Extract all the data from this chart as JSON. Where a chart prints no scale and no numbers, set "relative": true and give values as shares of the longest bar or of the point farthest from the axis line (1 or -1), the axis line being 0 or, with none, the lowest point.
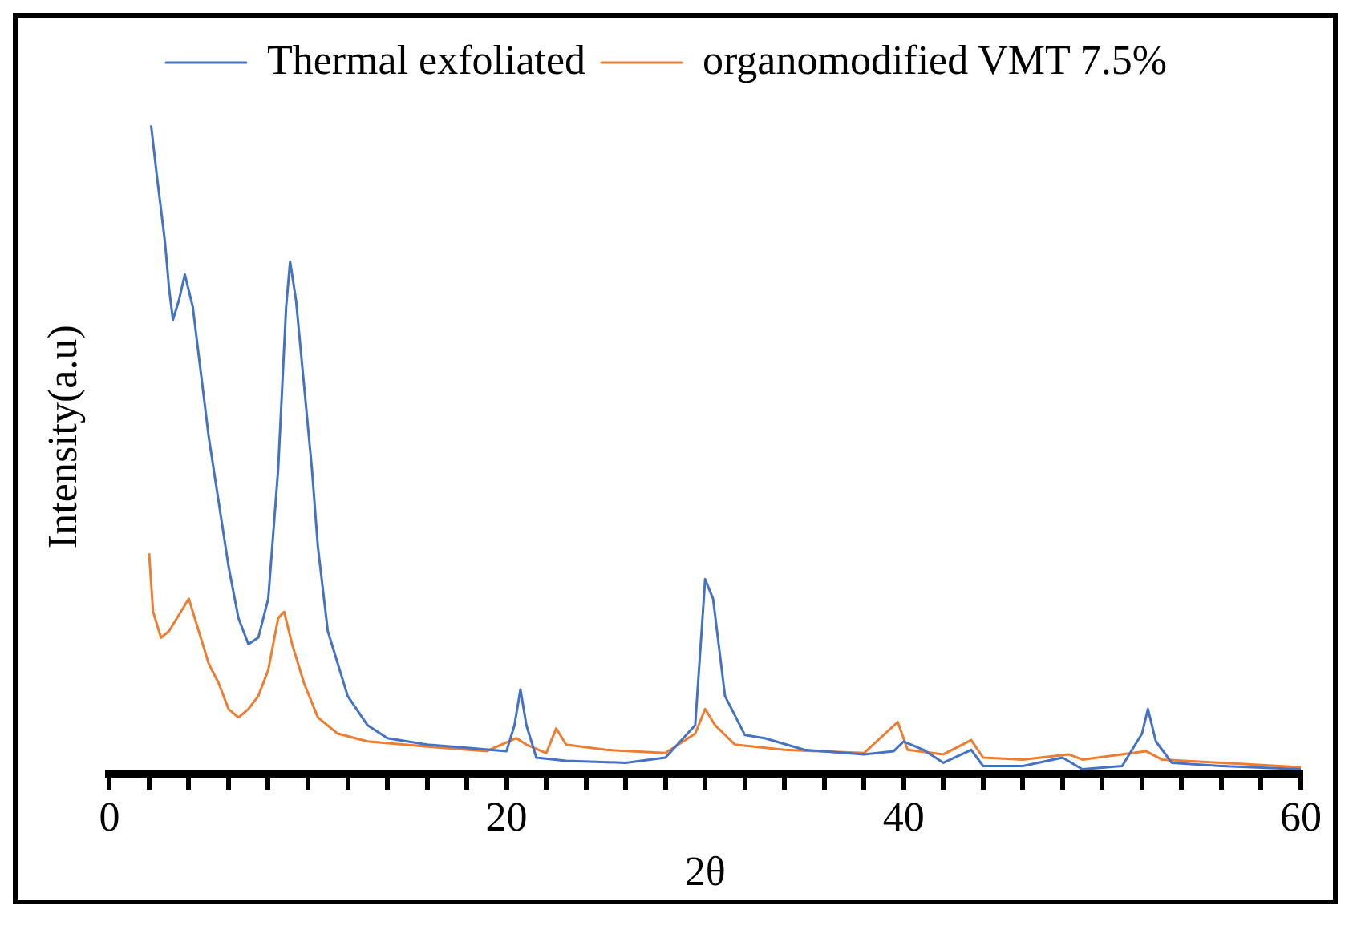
{
  "chart_data": {
    "type": "line",
    "xlabel": "2θ",
    "ylabel": "Intensity(a.u)",
    "relative": true,
    "legend": "top",
    "marker": "none",
    "grid": false,
    "xlim": [
      0,
      60
    ],
    "xticks": [
      0,
      {
        "value": 2,
        "label": null
      },
      {
        "value": 4,
        "label": null
      },
      {
        "value": 6,
        "label": null
      },
      {
        "value": 8,
        "label": null
      },
      {
        "value": 10,
        "label": null
      },
      {
        "value": 12,
        "label": null
      },
      {
        "value": 14,
        "label": null
      },
      {
        "value": 16,
        "label": null
      },
      {
        "value": 18,
        "label": null
      },
      20,
      {
        "value": 22,
        "label": null
      },
      {
        "value": 24,
        "label": null
      },
      {
        "value": 26,
        "label": null
      },
      {
        "value": 28,
        "label": null
      },
      {
        "value": 30,
        "label": null
      },
      {
        "value": 32,
        "label": null
      },
      {
        "value": 34,
        "label": null
      },
      {
        "value": 36,
        "label": null
      },
      {
        "value": 38,
        "label": null
      },
      40,
      {
        "value": 42,
        "label": null
      },
      {
        "value": 44,
        "label": null
      },
      {
        "value": 46,
        "label": null
      },
      {
        "value": 48,
        "label": null
      },
      {
        "value": 50,
        "label": null
      },
      {
        "value": 52,
        "label": null
      },
      {
        "value": 54,
        "label": null
      },
      {
        "value": 56,
        "label": null
      },
      {
        "value": 58,
        "label": null
      },
      60
    ],
    "series": [
      {
        "name": "Thermal exfoliated",
        "color": "#4472c4",
        "x": [
          2.1,
          2.4,
          2.8,
          3.0,
          3.2,
          3.5,
          3.8,
          4.2,
          4.6,
          5.0,
          5.5,
          6.0,
          6.5,
          7.0,
          7.5,
          8.0,
          8.5,
          8.9,
          9.1,
          9.4,
          9.8,
          10.2,
          10.5,
          11,
          12,
          13,
          14,
          16,
          18,
          20,
          20.4,
          20.7,
          21.0,
          21.5,
          23,
          26,
          28,
          29.5,
          30.0,
          30.4,
          31,
          32,
          33,
          35,
          38,
          39.5,
          40,
          41,
          42,
          43.4,
          44,
          46,
          48,
          49,
          51,
          52,
          52.3,
          52.7,
          53.5,
          56,
          60
        ],
        "values": [
          1.0,
          0.92,
          0.82,
          0.75,
          0.7,
          0.73,
          0.77,
          0.72,
          0.62,
          0.52,
          0.42,
          0.32,
          0.24,
          0.2,
          0.21,
          0.27,
          0.47,
          0.72,
          0.79,
          0.73,
          0.6,
          0.47,
          0.35,
          0.22,
          0.12,
          0.075,
          0.055,
          0.045,
          0.04,
          0.035,
          0.075,
          0.13,
          0.075,
          0.025,
          0.02,
          0.017,
          0.025,
          0.075,
          0.3,
          0.27,
          0.12,
          0.06,
          0.055,
          0.037,
          0.03,
          0.035,
          0.05,
          0.037,
          0.017,
          0.037,
          0.012,
          0.012,
          0.025,
          0.007,
          0.012,
          0.062,
          0.1,
          0.05,
          0.017,
          0.012,
          0.007
        ]
      },
      {
        "name": "organomodified VMT 7.5%",
        "color": "#ed7d31",
        "x": [
          2.0,
          2.2,
          2.6,
          3.0,
          3.6,
          4.0,
          4.5,
          5.0,
          5.5,
          6.0,
          6.5,
          7.0,
          7.5,
          8.0,
          8.5,
          8.8,
          9.2,
          9.8,
          10.5,
          11.5,
          13,
          16,
          19,
          20.5,
          21.0,
          22,
          22.5,
          23,
          25,
          28,
          29.5,
          30.0,
          30.5,
          31.5,
          34,
          38,
          39.7,
          40.2,
          42,
          43.4,
          44,
          46,
          48.3,
          49,
          52.2,
          53,
          56,
          60
        ],
        "values": [
          0.34,
          0.25,
          0.21,
          0.22,
          0.25,
          0.27,
          0.22,
          0.17,
          0.14,
          0.1,
          0.087,
          0.1,
          0.12,
          0.16,
          0.24,
          0.25,
          0.2,
          0.14,
          0.087,
          0.062,
          0.05,
          0.042,
          0.035,
          0.055,
          0.045,
          0.032,
          0.07,
          0.045,
          0.037,
          0.032,
          0.062,
          0.1,
          0.075,
          0.045,
          0.037,
          0.032,
          0.08,
          0.037,
          0.03,
          0.052,
          0.025,
          0.022,
          0.03,
          0.022,
          0.035,
          0.022,
          0.017,
          0.01
        ]
      }
    ]
  }
}
